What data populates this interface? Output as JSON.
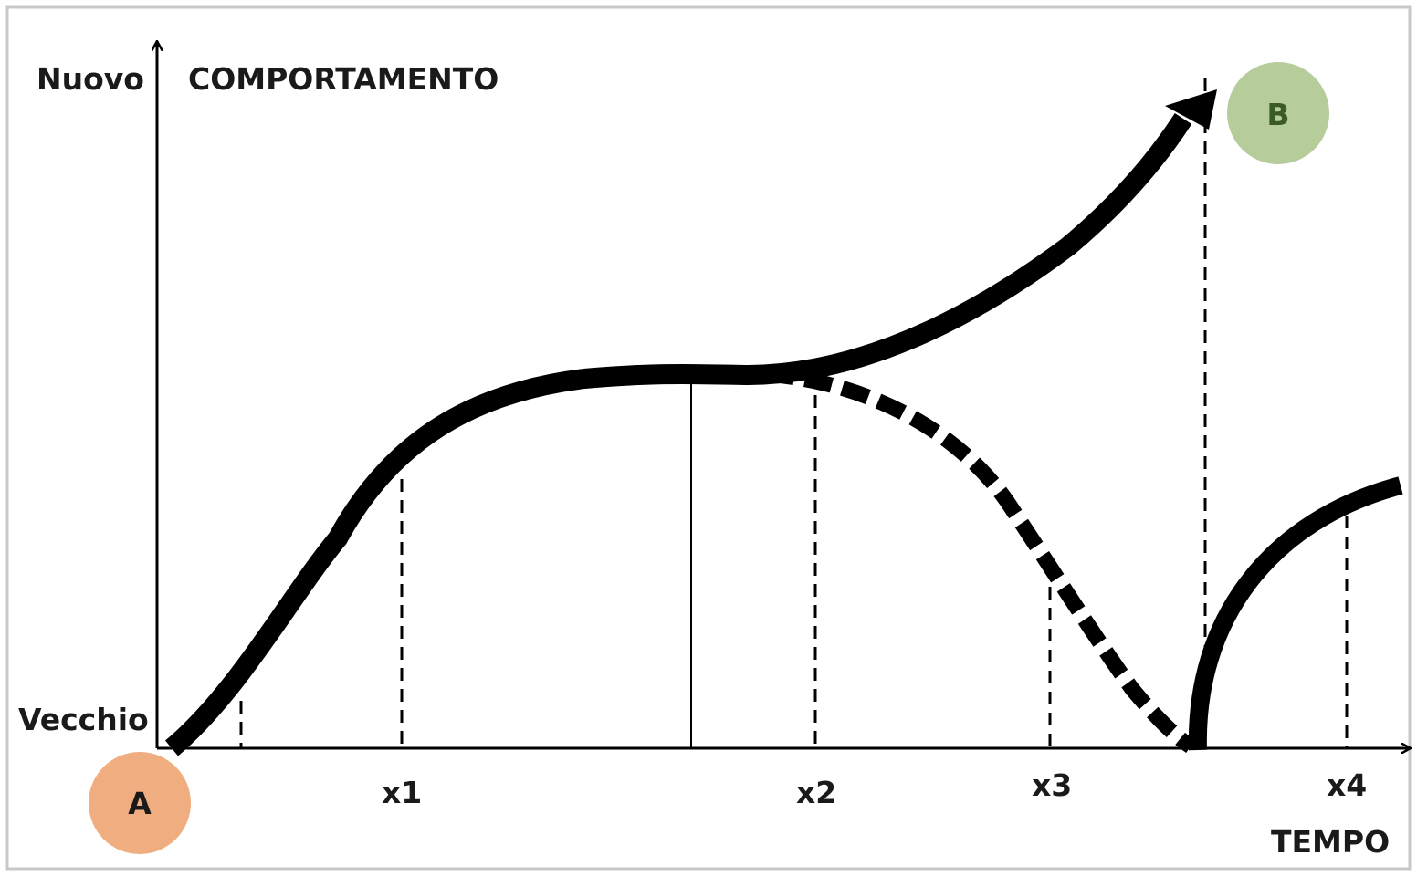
{
  "y_axis": {
    "title": "COMPORTAMENTO",
    "top_label": "Nuovo",
    "bottom_label": "Vecchio"
  },
  "x_axis": {
    "title": "TEMPO",
    "ticks": [
      "x1",
      "x2",
      "x3",
      "x4"
    ]
  },
  "points": {
    "start": "A",
    "end": "B"
  },
  "colors": {
    "start_circle": "#f0ad80",
    "end_circle": "#b6cc9b",
    "curve": "#000000",
    "axis": "#000000",
    "frame": "#c8c8c8"
  }
}
